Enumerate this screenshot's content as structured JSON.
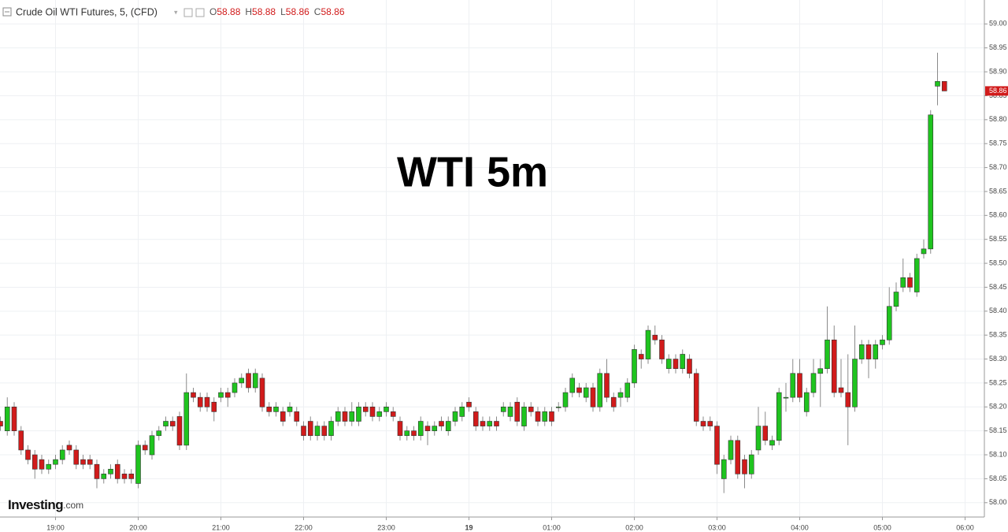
{
  "header": {
    "instrument": "Crude Oil WTI Futures, 5, (CFD)",
    "ohlc": [
      {
        "label": "O",
        "value": 58.88
      },
      {
        "label": "H",
        "value": 58.88
      },
      {
        "label": "L",
        "value": 58.86
      },
      {
        "label": "C",
        "value": 58.86
      }
    ]
  },
  "logo": {
    "brand": "Investing",
    "suffix": ".com"
  },
  "chart_data": {
    "type": "candlestick",
    "title": "WTI 5m",
    "categories": [
      null,
      null,
      null,
      null,
      null,
      null,
      null,
      null,
      "19:00",
      null,
      null,
      null,
      null,
      null,
      null,
      null,
      null,
      null,
      null,
      null,
      "20:00",
      null,
      null,
      null,
      null,
      null,
      null,
      null,
      null,
      null,
      null,
      null,
      "21:00",
      null,
      null,
      null,
      null,
      null,
      null,
      null,
      null,
      null,
      null,
      null,
      "22:00",
      null,
      null,
      null,
      null,
      null,
      null,
      null,
      null,
      null,
      null,
      null,
      "23:00",
      null,
      null,
      null,
      null,
      null,
      null,
      null,
      null,
      null,
      null,
      null,
      "19",
      null,
      null,
      null,
      null,
      null,
      null,
      null,
      null,
      null,
      null,
      null,
      "01:00",
      null,
      null,
      null,
      null,
      null,
      null,
      null,
      null,
      null,
      null,
      null,
      "02:00",
      null,
      null,
      null,
      null,
      null,
      null,
      null,
      null,
      null,
      null,
      null,
      "03:00",
      null,
      null,
      null,
      null,
      null,
      null,
      null,
      null,
      null,
      null,
      null,
      "04:00",
      null,
      null,
      null,
      null,
      null,
      null,
      null,
      null,
      null,
      null,
      null,
      "05:00",
      null,
      null,
      null,
      null,
      null,
      null,
      null,
      null,
      null,
      null,
      null,
      "06:00"
    ],
    "open": [
      58.17,
      58.15,
      58.2,
      58.15,
      58.11,
      58.1,
      58.09,
      58.07,
      58.08,
      58.09,
      58.12,
      58.11,
      58.09,
      58.09,
      58.08,
      58.05,
      58.06,
      58.08,
      58.06,
      58.06,
      58.04,
      58.12,
      58.1,
      58.14,
      58.16,
      58.17,
      58.18,
      58.12,
      58.23,
      58.22,
      58.22,
      58.21,
      58.22,
      58.23,
      58.23,
      58.25,
      58.27,
      58.24,
      58.26,
      58.2,
      58.19,
      58.19,
      58.19,
      58.19,
      58.16,
      58.17,
      58.14,
      58.16,
      58.14,
      58.17,
      58.19,
      58.17,
      58.17,
      58.2,
      58.2,
      58.18,
      58.19,
      58.19,
      58.17,
      58.14,
      58.15,
      58.14,
      58.16,
      58.15,
      58.17,
      58.15,
      58.17,
      58.18,
      58.21,
      58.19,
      58.17,
      58.16,
      58.17,
      58.19,
      58.18,
      58.21,
      58.16,
      58.2,
      58.19,
      58.17,
      58.19,
      58.2,
      58.2,
      58.23,
      58.24,
      58.22,
      58.24,
      58.2,
      58.27,
      58.22,
      58.22,
      58.22,
      58.25,
      58.31,
      58.3,
      58.35,
      58.34,
      58.28,
      58.3,
      58.28,
      58.3,
      58.27,
      58.17,
      58.17,
      58.16,
      58.05,
      58.09,
      58.13,
      58.09,
      58.06,
      58.11,
      58.16,
      58.12,
      58.13,
      58.22,
      58.22,
      58.27,
      58.19,
      58.23,
      58.27,
      58.28,
      58.34,
      58.24,
      58.23,
      58.2,
      58.3,
      58.33,
      58.3,
      58.33,
      58.34,
      58.41,
      58.45,
      58.47,
      58.44,
      58.52,
      58.53,
      58.87,
      58.88,
      null,
      null,
      null
    ],
    "high": [
      58.18,
      58.22,
      58.21,
      58.16,
      58.12,
      58.11,
      58.1,
      58.09,
      58.1,
      58.12,
      58.13,
      58.12,
      58.1,
      58.1,
      58.09,
      58.07,
      58.08,
      58.09,
      58.07,
      58.07,
      58.13,
      58.13,
      58.15,
      58.16,
      58.18,
      58.18,
      58.19,
      58.27,
      58.24,
      58.23,
      58.23,
      58.22,
      58.24,
      58.24,
      58.26,
      58.27,
      58.28,
      58.28,
      58.27,
      58.21,
      58.21,
      58.2,
      58.21,
      58.2,
      58.17,
      58.18,
      58.17,
      58.17,
      58.18,
      58.2,
      58.2,
      58.21,
      58.21,
      58.21,
      58.21,
      58.2,
      58.21,
      58.2,
      58.18,
      58.16,
      58.16,
      58.18,
      58.17,
      58.17,
      58.18,
      58.18,
      58.2,
      58.21,
      58.22,
      58.2,
      58.18,
      58.18,
      58.18,
      58.21,
      58.21,
      58.22,
      58.21,
      58.21,
      58.2,
      58.2,
      58.2,
      58.21,
      58.24,
      58.27,
      58.25,
      58.25,
      58.25,
      58.28,
      58.3,
      58.23,
      58.24,
      58.26,
      58.33,
      58.32,
      58.37,
      58.37,
      58.35,
      58.31,
      58.31,
      58.32,
      58.31,
      58.28,
      58.18,
      58.18,
      58.17,
      58.1,
      58.14,
      58.14,
      58.1,
      58.11,
      58.2,
      58.19,
      58.14,
      58.24,
      58.25,
      58.3,
      58.3,
      58.24,
      58.3,
      58.3,
      58.41,
      58.37,
      58.3,
      58.31,
      58.37,
      58.34,
      58.34,
      58.34,
      58.35,
      58.45,
      58.46,
      58.51,
      58.48,
      58.52,
      58.55,
      58.82,
      58.94,
      58.88,
      null,
      null,
      null
    ],
    "low": [
      58.15,
      58.14,
      58.14,
      58.1,
      58.08,
      58.05,
      58.06,
      58.06,
      58.07,
      58.08,
      58.1,
      58.07,
      58.07,
      58.07,
      58.03,
      58.04,
      58.05,
      58.04,
      58.04,
      58.04,
      58.03,
      58.1,
      58.09,
      58.13,
      58.15,
      58.15,
      58.11,
      58.11,
      58.21,
      58.19,
      58.19,
      58.17,
      58.21,
      58.2,
      58.22,
      58.24,
      58.23,
      58.23,
      58.19,
      58.18,
      58.18,
      58.16,
      58.18,
      58.16,
      58.13,
      58.13,
      58.13,
      58.13,
      58.13,
      58.16,
      58.16,
      58.16,
      58.16,
      58.18,
      58.17,
      58.17,
      58.18,
      58.17,
      58.13,
      58.13,
      58.13,
      58.13,
      58.12,
      58.14,
      58.15,
      58.14,
      58.16,
      58.17,
      58.19,
      58.15,
      58.15,
      58.15,
      58.15,
      58.18,
      58.17,
      58.16,
      58.15,
      58.18,
      58.16,
      58.16,
      58.16,
      58.19,
      58.19,
      58.22,
      58.22,
      58.21,
      58.19,
      58.19,
      58.21,
      58.19,
      58.2,
      58.21,
      58.24,
      58.28,
      58.29,
      58.33,
      58.29,
      58.27,
      58.27,
      58.27,
      58.26,
      58.16,
      58.15,
      58.15,
      58.06,
      58.02,
      58.08,
      58.05,
      58.03,
      58.05,
      58.1,
      58.12,
      58.11,
      58.12,
      58.19,
      58.21,
      58.21,
      58.18,
      58.22,
      58.2,
      58.27,
      58.22,
      58.22,
      58.12,
      58.19,
      58.29,
      58.26,
      58.28,
      58.32,
      58.33,
      58.4,
      58.44,
      58.44,
      58.43,
      58.51,
      58.52,
      58.83,
      58.86,
      null,
      null,
      null
    ],
    "close": [
      58.16,
      58.2,
      58.15,
      58.11,
      58.09,
      58.07,
      58.07,
      58.08,
      58.09,
      58.11,
      58.11,
      58.08,
      58.08,
      58.08,
      58.05,
      58.06,
      58.07,
      58.05,
      58.05,
      58.05,
      58.12,
      58.11,
      58.14,
      58.15,
      58.17,
      58.16,
      58.12,
      58.23,
      58.22,
      58.2,
      58.2,
      58.19,
      58.23,
      58.22,
      58.25,
      58.26,
      58.24,
      58.27,
      58.2,
      58.19,
      58.2,
      58.17,
      58.2,
      58.17,
      58.14,
      58.14,
      58.16,
      58.14,
      58.17,
      58.19,
      58.17,
      58.19,
      58.2,
      58.19,
      58.18,
      58.19,
      58.2,
      58.18,
      58.14,
      58.15,
      58.14,
      58.17,
      58.15,
      58.16,
      58.16,
      58.17,
      58.19,
      58.2,
      58.2,
      58.16,
      58.16,
      58.17,
      58.16,
      58.2,
      58.2,
      58.17,
      58.2,
      58.19,
      58.17,
      58.19,
      58.17,
      58.2,
      58.23,
      58.26,
      58.23,
      58.24,
      58.2,
      58.27,
      58.22,
      58.2,
      58.23,
      58.25,
      58.32,
      58.3,
      58.36,
      58.34,
      58.3,
      58.3,
      58.28,
      58.31,
      58.27,
      58.17,
      58.16,
      58.16,
      58.08,
      58.09,
      58.13,
      58.06,
      58.06,
      58.1,
      58.16,
      58.13,
      58.13,
      58.23,
      58.22,
      58.27,
      58.22,
      58.23,
      58.27,
      58.28,
      58.34,
      58.23,
      58.23,
      58.2,
      58.3,
      58.33,
      58.3,
      58.33,
      58.34,
      58.41,
      58.44,
      58.47,
      58.45,
      58.51,
      58.53,
      58.81,
      58.88,
      58.86,
      null,
      null,
      null
    ],
    "up_color": "#1fc41f",
    "down_color": "#d11b1b",
    "ylim": [
      57.97,
      59.05
    ],
    "yticks": [
      {
        "value": 58.0,
        "label": "58.00"
      },
      {
        "value": 58.05,
        "label": "58.05"
      },
      {
        "value": 58.1,
        "label": "58.10"
      },
      {
        "value": 58.15,
        "label": "58.15"
      },
      {
        "value": 58.2,
        "label": "58.20"
      },
      {
        "value": 58.25,
        "label": "58.25"
      },
      {
        "value": 58.3,
        "label": "58.30"
      },
      {
        "value": 58.35,
        "label": "58.35"
      },
      {
        "value": 58.4,
        "label": "58.40"
      },
      {
        "value": 58.45,
        "label": "58.45"
      },
      {
        "value": 58.5,
        "label": "58.50"
      },
      {
        "value": 58.55,
        "label": "58.55"
      },
      {
        "value": 58.6,
        "label": "58.60"
      },
      {
        "value": 58.65,
        "label": "58.65"
      },
      {
        "value": 58.7,
        "label": "58.70"
      },
      {
        "value": 58.75,
        "label": "58.75"
      },
      {
        "value": 58.8,
        "label": "58.80"
      },
      {
        "value": 58.85,
        "label": "58.85"
      },
      {
        "value": 58.9,
        "label": "58.90"
      },
      {
        "value": 58.95,
        "label": "58.95"
      },
      {
        "value": 59.0,
        "label": "59.00"
      }
    ],
    "last_price": 58.86,
    "grid": true
  }
}
